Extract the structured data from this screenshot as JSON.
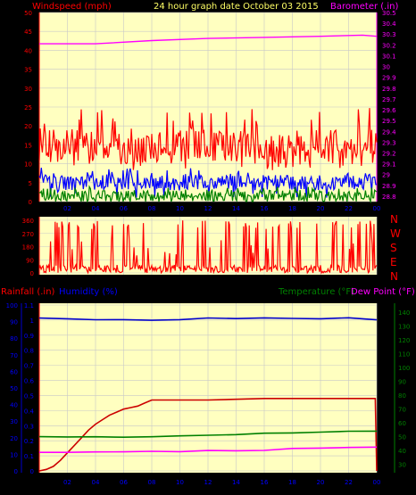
{
  "header": {
    "left_title": "Windspeed (mph)",
    "center_title": "24 hour graph date   October 03 2015",
    "right_title": "Barometer (.in)"
  },
  "bottom_header": {
    "rainfall_label": "Rainfall (.in)",
    "humidity_label": "Humidity (%)",
    "temperature_label": "Temperature (°F)",
    "dewpoint_label": "Dew Point (°F)"
  },
  "direction_labels": [
    "N",
    "W",
    "S",
    "E",
    "N"
  ],
  "colors": {
    "background": "#000000",
    "plot_bg": "#ffffc0",
    "grid": "#c8c8c8",
    "axis_red": "#ff0000",
    "wind_gust": "#ff0000",
    "wind_avg": "#0000ff",
    "wind_low": "#008000",
    "barometer": "#ff00ff",
    "direction": "#ff0000",
    "rain": "#cc0000",
    "humidity": "#0000cc",
    "temperature": "#008000",
    "dewpoint": "#ff00ff",
    "title_yellow": "#ffff66",
    "magenta_text": "#ff00ff",
    "blue_text": "#0000ff",
    "green_text": "#008000"
  },
  "chart_data": [
    {
      "id": "wind",
      "type": "line",
      "x_ticks": [
        "02",
        "04",
        "06",
        "08",
        "10",
        "12",
        "14",
        "16",
        "18",
        "20",
        "22",
        "00"
      ],
      "y_left_ticks": [
        0,
        5,
        10,
        15,
        20,
        25,
        30,
        35,
        40,
        45,
        50
      ],
      "ylim_left": [
        0,
        50
      ],
      "y_right_ticks": [
        "28.8",
        "28.9",
        "29",
        "29.1",
        "29.2",
        "29.3",
        "29.4",
        "29.5",
        "29.6",
        "29.7",
        "29.8",
        "29.9",
        "30",
        "30.1",
        "30.2",
        "30.3",
        "30.4",
        "30.5"
      ],
      "ylim_right": [
        28.75,
        30.5
      ],
      "series": [
        {
          "role": "gust",
          "min": 8,
          "max": 25,
          "typical_low": 10,
          "typical_high": 19
        },
        {
          "role": "average",
          "min": 1,
          "max": 9,
          "typical_low": 3,
          "typical_high": 7
        },
        {
          "role": "low",
          "min": 0,
          "max": 4,
          "typical_low": 0,
          "typical_high": 3
        },
        {
          "role": "barometer",
          "axis": "right",
          "x": [
            0,
            4,
            8,
            12,
            16,
            20,
            23,
            24
          ],
          "values": [
            30.21,
            30.21,
            30.24,
            30.26,
            30.27,
            30.28,
            30.29,
            30.28
          ]
        }
      ]
    },
    {
      "id": "direction",
      "type": "line",
      "y_ticks": [
        0,
        90,
        180,
        270,
        360
      ],
      "ylim": [
        0,
        360
      ]
    },
    {
      "id": "rain_humidity_temp",
      "type": "line",
      "x_ticks": [
        "02",
        "04",
        "06",
        "08",
        "10",
        "12",
        "14",
        "16",
        "18",
        "20",
        "22",
        "00"
      ],
      "y_rain_ticks": [
        "0",
        "0.1",
        "0.2",
        "0.3",
        "0.4",
        "0.5",
        "0.6",
        "0.7",
        "0.8",
        "0.9",
        "1",
        "1.1"
      ],
      "ylim_rain": [
        0,
        1.1
      ],
      "y_humidity_ticks": [
        0,
        10,
        20,
        30,
        40,
        50,
        60,
        70,
        80,
        90,
        100
      ],
      "ylim_humidity": [
        0,
        100
      ],
      "y_temp_ticks": [
        30,
        40,
        50,
        60,
        70,
        80,
        90,
        100,
        110,
        120,
        130,
        140
      ],
      "ylim_temp": [
        25,
        145
      ],
      "series": [
        {
          "role": "rainfall",
          "axis": "rain",
          "x": [
            0,
            0.5,
            1,
            1.5,
            2,
            2.5,
            3,
            3.5,
            4,
            4.5,
            5,
            5.5,
            6,
            6.5,
            7,
            7.5,
            8,
            9,
            12,
            16,
            20,
            23.9,
            24
          ],
          "values": [
            0,
            0.01,
            0.03,
            0.07,
            0.12,
            0.17,
            0.22,
            0.27,
            0.31,
            0.34,
            0.37,
            0.39,
            0.41,
            0.42,
            0.43,
            0.45,
            0.47,
            0.47,
            0.47,
            0.48,
            0.48,
            0.48,
            0.0
          ]
        },
        {
          "role": "humidity",
          "axis": "humidity",
          "x": [
            0,
            2,
            4,
            6,
            8,
            10,
            12,
            14,
            16,
            18,
            20,
            22,
            24
          ],
          "values": [
            92,
            92,
            91,
            91,
            91,
            91,
            92,
            92,
            92,
            92,
            92,
            92,
            91
          ]
        },
        {
          "role": "temperature",
          "axis": "temp",
          "x": [
            0,
            2,
            4,
            6,
            8,
            10,
            12,
            14,
            16,
            18,
            20,
            22,
            24
          ],
          "values": [
            49.5,
            49.5,
            49.5,
            49.5,
            50,
            50.5,
            51,
            51.5,
            52,
            52.5,
            53,
            53.5,
            54
          ]
        },
        {
          "role": "dewpoint",
          "axis": "temp",
          "x": [
            0,
            2,
            4,
            6,
            8,
            10,
            12,
            14,
            16,
            18,
            20,
            22,
            24
          ],
          "values": [
            38.5,
            38.5,
            38.5,
            39,
            39,
            39,
            39.5,
            39.5,
            40,
            41,
            41.5,
            42,
            42
          ]
        }
      ]
    }
  ]
}
